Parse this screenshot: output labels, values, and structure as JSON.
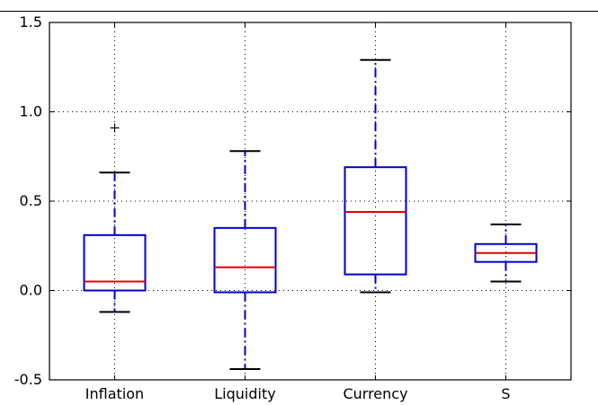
{
  "chart_data": {
    "type": "boxplot",
    "title": "",
    "xlabel": "",
    "ylabel": "",
    "ylim": [
      -0.5,
      1.5
    ],
    "yticks": [
      {
        "value": -0.5,
        "label": "-0.5"
      },
      {
        "value": 0.0,
        "label": "0.0"
      },
      {
        "value": 0.5,
        "label": "0.5"
      },
      {
        "value": 1.0,
        "label": "1.0"
      },
      {
        "value": 1.5,
        "label": "1.5"
      }
    ],
    "grid": true,
    "colors": {
      "box": "#0000cc",
      "median": "#dd0000",
      "whisker": "#0000cc",
      "cap": "#000000",
      "grid": "#000000"
    },
    "categories": [
      "Inflation",
      "Liquidity",
      "Currency",
      "S"
    ],
    "boxes": [
      {
        "name": "Inflation",
        "whisker_low": -0.12,
        "q1": 0.0,
        "median": 0.05,
        "q3": 0.31,
        "whisker_high": 0.66,
        "outliers": [
          0.91
        ]
      },
      {
        "name": "Liquidity",
        "whisker_low": -0.44,
        "q1": -0.01,
        "median": 0.13,
        "q3": 0.35,
        "whisker_high": 0.78,
        "outliers": []
      },
      {
        "name": "Currency",
        "whisker_low": -0.01,
        "q1": 0.09,
        "median": 0.44,
        "q3": 0.69,
        "whisker_high": 1.29,
        "outliers": []
      },
      {
        "name": "S",
        "whisker_low": 0.05,
        "q1": 0.16,
        "median": 0.21,
        "q3": 0.26,
        "whisker_high": 0.37,
        "outliers": []
      }
    ]
  }
}
